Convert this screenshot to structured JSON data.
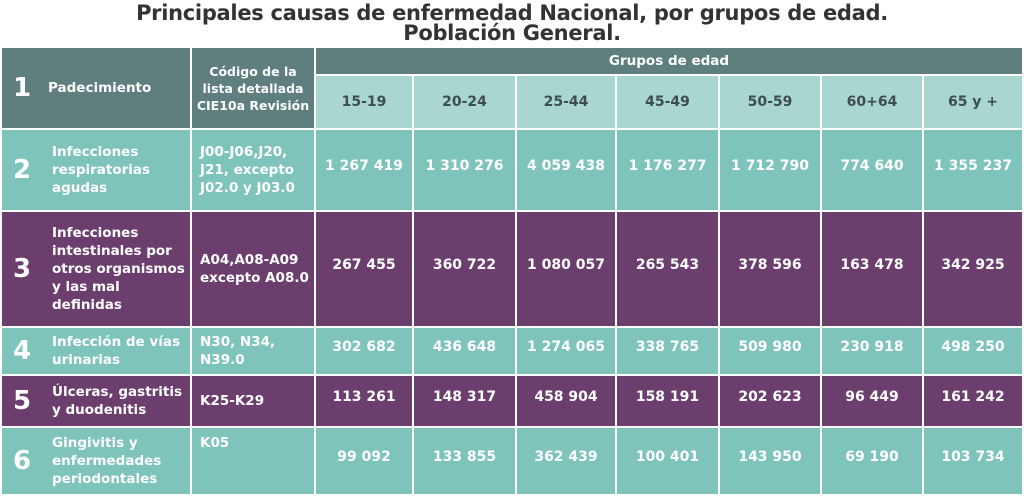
{
  "title": [
    "Principales causas de enfermedad Nacional, por grupos de edad.",
    "Población General."
  ],
  "header": {
    "number": "1",
    "disease": "Padecimiento",
    "code": "Código de la lista detallada CIE10a Revisión",
    "group": "Grupos de edad",
    "ages": [
      "15-19",
      "20-24",
      "25-44",
      "45-49",
      "50-59",
      "60+64",
      "65 y +"
    ]
  },
  "rows": [
    {
      "number": "2",
      "disease": "Infecciones respiratorias agudas",
      "code": "J00-J06,J20, J21, excepto J02.0 y J03.0",
      "values": [
        "1 267 419",
        "1 310 276",
        "4 059 438",
        "1 176 277",
        "1 712 790",
        "774 640",
        "1 355 237"
      ]
    },
    {
      "number": "3",
      "disease": "Infecciones intestinales por otros organismos y las mal definidas",
      "code": "A04,A08-A09 excepto A08.0",
      "values": [
        "267 455",
        "360 722",
        "1 080 057",
        "265 543",
        "378 596",
        "163 478",
        "342 925"
      ]
    },
    {
      "number": "4",
      "disease": "Infección de vías urinarias",
      "code": "N30, N34, N39.0",
      "values": [
        "302 682",
        "436 648",
        "1 274 065",
        "338 765",
        "509 980",
        "230 918",
        "498 250"
      ]
    },
    {
      "number": "5",
      "disease": "Úlceras, gastritis y duodenitis",
      "code": "K25-K29",
      "values": [
        "113 261",
        "148 317",
        "458 904",
        "158 191",
        "202 623",
        "96 449",
        "161 242"
      ]
    },
    {
      "number": "6",
      "disease": "Gingivitis y enfermedades periodontales",
      "code": "K05",
      "values": [
        "99 092",
        "133 855",
        "362 439",
        "100 401",
        "143 950",
        "69 190",
        "103 734"
      ]
    }
  ]
}
